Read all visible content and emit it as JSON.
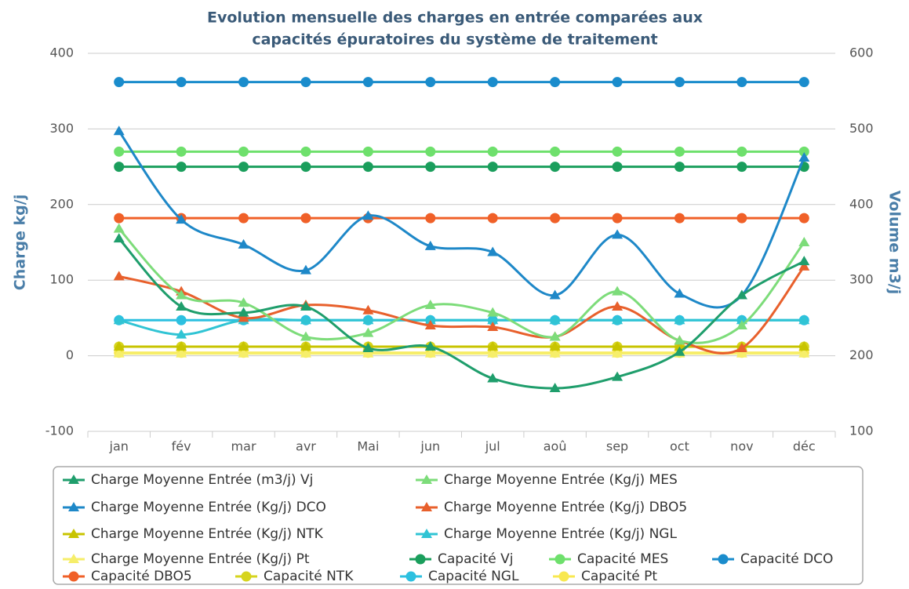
{
  "chart_data": {
    "type": "line",
    "title": [
      "Evolution mensuelle des charges en entrée comparées aux",
      "capacités épuratoires du système de traitement"
    ],
    "ylabel": "Charge kg/j",
    "y2label": "Volume m3/j",
    "categories": [
      "jan",
      "fév",
      "mar",
      "avr",
      "Mai",
      "jun",
      "jul",
      "aoû",
      "sep",
      "oct",
      "nov",
      "déc"
    ],
    "ylim": [
      -100,
      400
    ],
    "yticks": [
      -100,
      0,
      100,
      200,
      300,
      400
    ],
    "y2lim": [
      100,
      600
    ],
    "y2ticks": [
      100,
      200,
      300,
      400,
      500,
      600
    ],
    "grid": true,
    "smooth": true,
    "legend": "bottom",
    "series": [
      {
        "name": "Charge Moyenne Entrée (m3/j) Vj",
        "color": "#1f9e6c",
        "marker": "triangle",
        "values": [
          155,
          65,
          57,
          65,
          10,
          12,
          -30,
          -43,
          -28,
          5,
          80,
          125
        ]
      },
      {
        "name": "Charge Moyenne Entrée (Kg/j) MES",
        "color": "#7ddc7a",
        "marker": "triangle",
        "values": [
          168,
          80,
          70,
          25,
          30,
          67,
          57,
          25,
          85,
          20,
          40,
          150
        ]
      },
      {
        "name": "Charge Moyenne Entrée (Kg/j) DCO",
        "color": "#1e88c8",
        "marker": "triangle",
        "values": [
          297,
          180,
          147,
          113,
          185,
          145,
          137,
          80,
          160,
          82,
          80,
          262
        ]
      },
      {
        "name": "Charge Moyenne Entrée (Kg/j) DBO5",
        "color": "#e8602c",
        "marker": "triangle",
        "values": [
          105,
          85,
          50,
          67,
          60,
          40,
          38,
          25,
          65,
          20,
          10,
          118
        ]
      },
      {
        "name": "Charge Moyenne Entrée (Kg/j) NTK",
        "color": "#c8c400",
        "marker": "triangle",
        "values": [
          12,
          12,
          12,
          12,
          12,
          12,
          12,
          12,
          12,
          12,
          12,
          12
        ]
      },
      {
        "name": "Charge Moyenne Entrée (Kg/j) NGL",
        "color": "#30c4d4",
        "marker": "triangle",
        "values": [
          47,
          28,
          47,
          47,
          47,
          47,
          47,
          47,
          47,
          47,
          47,
          47
        ]
      },
      {
        "name": "Charge Moyenne Entrée (Kg/j) Pt",
        "color": "#f6ee6a",
        "marker": "triangle",
        "values": [
          3,
          3,
          3,
          3,
          3,
          3,
          3,
          3,
          3,
          3,
          3,
          3
        ]
      },
      {
        "name": "Capacité Vj",
        "color": "#1a9e5c",
        "marker": "circle",
        "values": [
          250,
          250,
          250,
          250,
          250,
          250,
          250,
          250,
          250,
          250,
          250,
          250
        ]
      },
      {
        "name": "Capacité MES",
        "color": "#6ee06c",
        "marker": "circle",
        "values": [
          270,
          270,
          270,
          270,
          270,
          270,
          270,
          270,
          270,
          270,
          270,
          270
        ]
      },
      {
        "name": "Capacité DCO",
        "color": "#1a8ccc",
        "marker": "circle",
        "values": [
          362,
          362,
          362,
          362,
          362,
          362,
          362,
          362,
          362,
          362,
          362,
          362
        ]
      },
      {
        "name": "Capacité DBO5",
        "color": "#f06028",
        "marker": "circle",
        "values": [
          182,
          182,
          182,
          182,
          182,
          182,
          182,
          182,
          182,
          182,
          182,
          182
        ]
      },
      {
        "name": "Capacité NTK",
        "color": "#d6d41e",
        "marker": "circle",
        "values": [
          12,
          12,
          12,
          12,
          12,
          12,
          12,
          12,
          12,
          12,
          12,
          12
        ]
      },
      {
        "name": "Capacité NGL",
        "color": "#2cc0e0",
        "marker": "circle",
        "values": [
          47,
          47,
          47,
          47,
          47,
          47,
          47,
          47,
          47,
          47,
          47,
          47
        ]
      },
      {
        "name": "Capacité Pt",
        "color": "#f8e850",
        "marker": "circle",
        "values": [
          4,
          4,
          4,
          4,
          4,
          4,
          4,
          4,
          4,
          4,
          4,
          4
        ]
      }
    ]
  }
}
